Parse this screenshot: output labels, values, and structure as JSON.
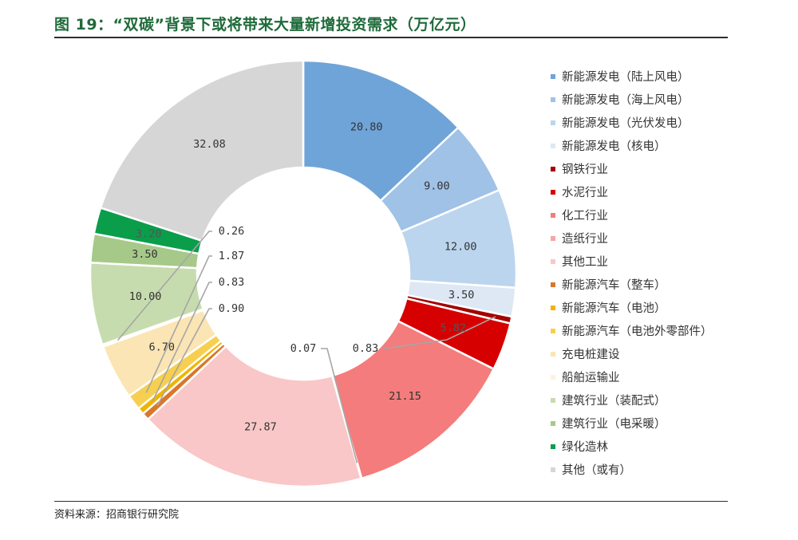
{
  "header": {
    "title": "图 19：“双碳”背景下或将带来大量新增投资需求（万亿元）"
  },
  "footer": {
    "source": "资料来源：招商银行研究院"
  },
  "chart_data": {
    "type": "pie",
    "variant": "donut",
    "title": "图 19：“双碳”背景下或将带来大量新增投资需求（万亿元）",
    "unit": "万亿元",
    "legend_position": "right",
    "slices": [
      {
        "label": "新能源发电（陆上风电）",
        "value": 20.8,
        "display": "20.80",
        "color": "#6fa4d8"
      },
      {
        "label": "新能源发电（海上风电）",
        "value": 9.0,
        "display": "9.00",
        "color": "#9fc2e6"
      },
      {
        "label": "新能源发电（光伏发电）",
        "value": 12.0,
        "display": "12.00",
        "color": "#bcd5ee"
      },
      {
        "label": "新能源发电（核电）",
        "value": 3.5,
        "display": "3.50",
        "color": "#dde8f4"
      },
      {
        "label": "钢铁行业",
        "value": 0.83,
        "display": "0.83",
        "color": "#a40000"
      },
      {
        "label": "水泥行业",
        "value": 5.82,
        "display": "5.82",
        "color": "#d60000"
      },
      {
        "label": "化工行业",
        "value": 21.15,
        "display": "21.15",
        "color": "#f47c7c"
      },
      {
        "label": "造纸行业",
        "value": 0.07,
        "display": "0.07",
        "color": "#f4a6a6"
      },
      {
        "label": "其他工业",
        "value": 27.87,
        "display": "27.87",
        "color": "#f9c7c7"
      },
      {
        "label": "新能源汽车（整车）",
        "value": 0.9,
        "display": "0.90",
        "color": "#d9772b"
      },
      {
        "label": "新能源汽车（电池）",
        "value": 0.83,
        "display": "0.83",
        "color": "#f0b400"
      },
      {
        "label": "新能源汽车（电池外零部件）",
        "value": 1.87,
        "display": "1.87",
        "color": "#f7cf50"
      },
      {
        "label": "充电桩建设",
        "value": 6.7,
        "display": "6.70",
        "color": "#fbe5b4"
      },
      {
        "label": "船舶运输业",
        "value": 0.26,
        "display": "0.26",
        "color": "#fdf3dd"
      },
      {
        "label": "建筑行业（装配式）",
        "value": 10.0,
        "display": "10.00",
        "color": "#c7dcae"
      },
      {
        "label": "建筑行业（电采暖）",
        "value": 3.5,
        "display": "3.50",
        "color": "#a6c98a"
      },
      {
        "label": "绿化造林",
        "value": 3.2,
        "display": "3.20",
        "color": "#0a9e4a"
      },
      {
        "label": "其他（或有）",
        "value": 32.08,
        "display": "32.08",
        "color": "#d6d6d6"
      }
    ]
  }
}
